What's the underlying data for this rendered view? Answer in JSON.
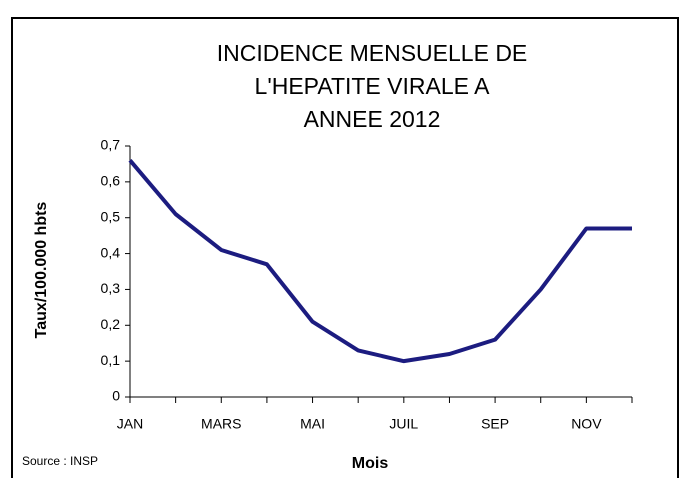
{
  "chart_data": {
    "type": "line",
    "title": [
      "INCIDENCE MENSUELLE DE",
      "L'HEPATITE VIRALE A",
      "ANNEE 2012"
    ],
    "y_label": "Taux/100.000 hbts",
    "x_label": "Mois",
    "source": "Source : INSP",
    "categories": [
      "JAN",
      null,
      "MARS",
      null,
      "MAI",
      null,
      "JUIL",
      null,
      "SEP",
      null,
      "NOV",
      null
    ],
    "series": [
      {
        "name": "Incidence",
        "color": "#1c1c80",
        "values": [
          0.66,
          0.51,
          0.41,
          0.37,
          0.21,
          0.13,
          0.1,
          0.12,
          0.16,
          0.3,
          0.47,
          0.47
        ]
      }
    ],
    "ylim": [
      0,
      0.7
    ],
    "yticks": [
      0,
      {
        "value": 0.1,
        "label": "0,1"
      },
      {
        "value": 0.2,
        "label": "0,2"
      },
      {
        "value": 0.3,
        "label": "0,3"
      },
      {
        "value": 0.4,
        "label": "0,4"
      },
      {
        "value": 0.5,
        "label": "0,5"
      },
      {
        "value": 0.6,
        "label": "0,6"
      },
      {
        "value": 0.7,
        "label": "0,7"
      }
    ],
    "grid": false
  }
}
